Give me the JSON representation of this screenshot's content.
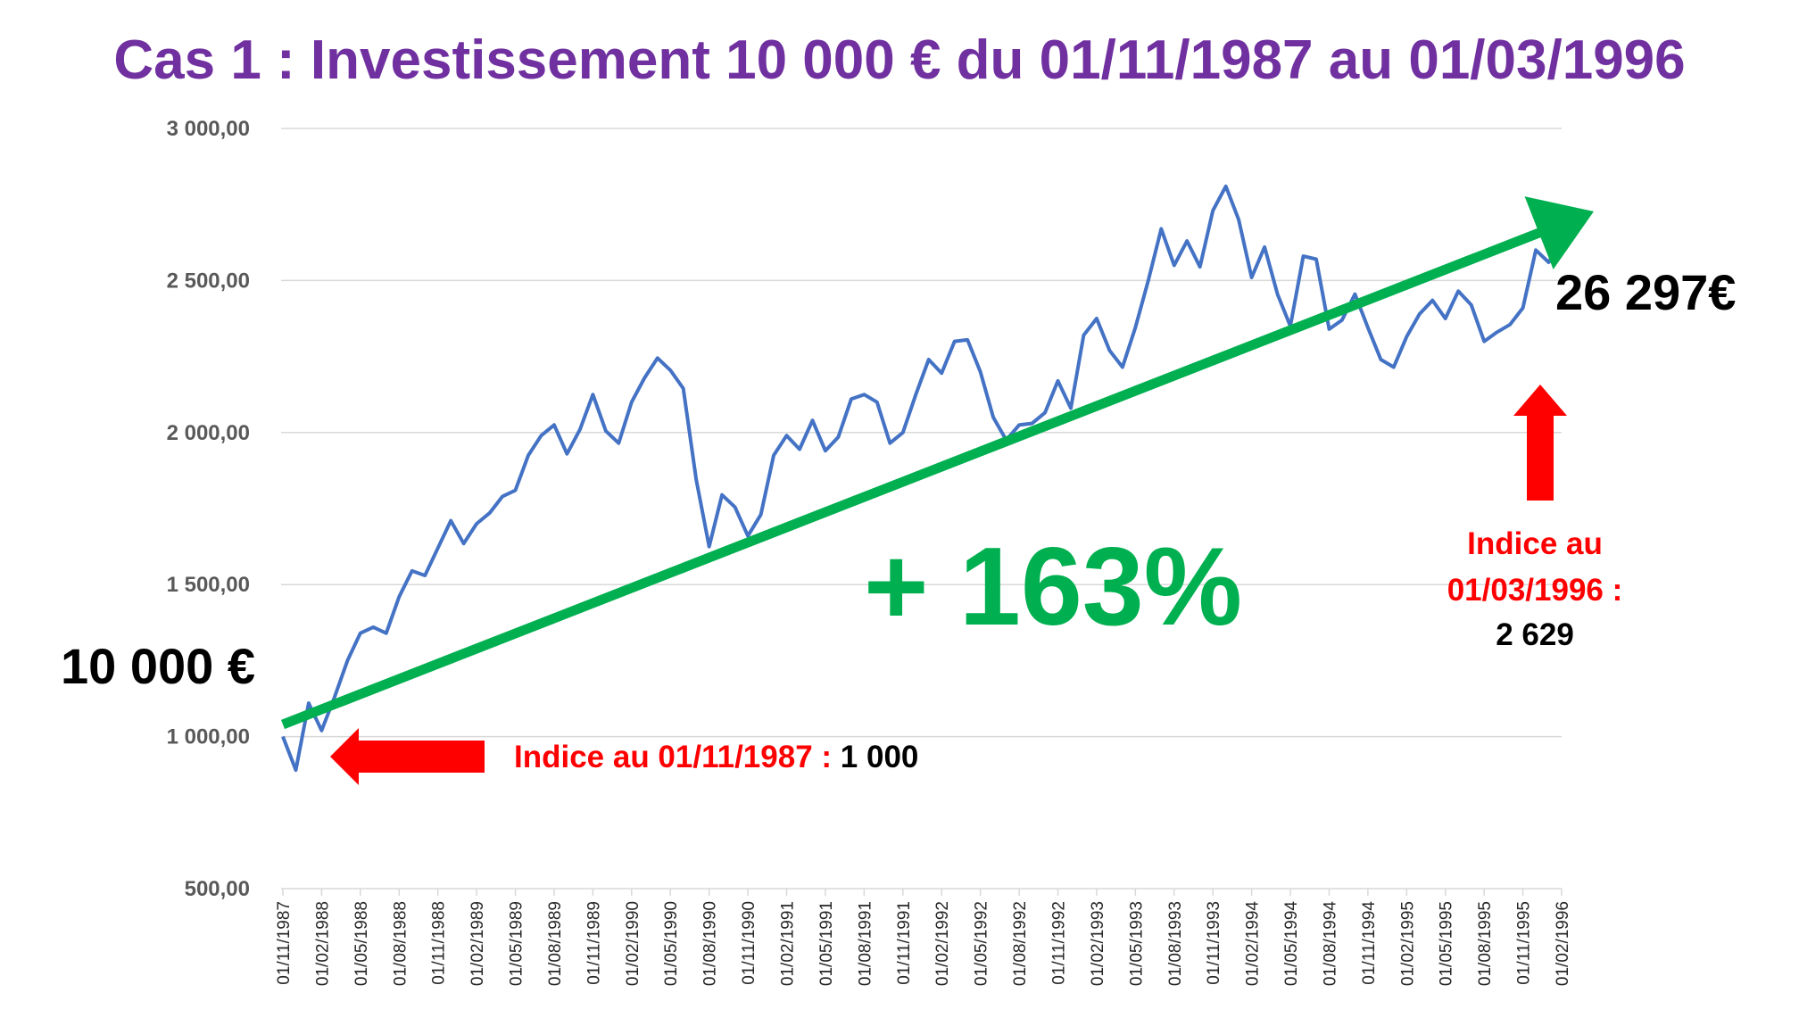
{
  "chart_data": {
    "type": "line",
    "title": "Cas 1 : Investissement 10 000 € du 01/11/1987 au 01/03/1996",
    "xlabel": "",
    "ylabel": "",
    "ylim": [
      500,
      3000
    ],
    "yticks": [
      "3 000,00",
      "2 500,00",
      "2 000,00",
      "1 500,00",
      "1 000,00",
      "500,00"
    ],
    "ytick_values": [
      3000,
      2500,
      2000,
      1500,
      1000,
      500
    ],
    "x_ticks": [
      "01/11/1987",
      "01/02/1988",
      "01/05/1988",
      "01/08/1988",
      "01/11/1988",
      "01/02/1989",
      "01/05/1989",
      "01/08/1989",
      "01/11/1989",
      "01/02/1990",
      "01/05/1990",
      "01/08/1990",
      "01/11/1990",
      "01/02/1991",
      "01/05/1991",
      "01/08/1991",
      "01/11/1991",
      "01/02/1992",
      "01/05/1992",
      "01/08/1992",
      "01/11/1992",
      "01/02/1993",
      "01/05/1993",
      "01/08/1993",
      "01/11/1993",
      "01/02/1994",
      "01/05/1994",
      "01/08/1994",
      "01/11/1994",
      "01/02/1995",
      "01/05/1995",
      "01/08/1995",
      "01/11/1995",
      "01/02/1996"
    ],
    "grid": true,
    "legend": "none",
    "series": [
      {
        "color": "#4472C4",
        "x_start": "01/11/1987",
        "x_step": "1 month",
        "values": [
          1000,
          890,
          1110,
          1020,
          1130,
          1250,
          1340,
          1360,
          1340,
          1460,
          1545,
          1530,
          1620,
          1710,
          1635,
          1700,
          1735,
          1790,
          1810,
          1925,
          1990,
          2025,
          1930,
          2010,
          2125,
          2005,
          1965,
          2100,
          2180,
          2245,
          2205,
          2145,
          1845,
          1625,
          1795,
          1755,
          1660,
          1730,
          1925,
          1990,
          1945,
          2040,
          1940,
          1985,
          2110,
          2125,
          2100,
          1965,
          2000,
          2125,
          2240,
          2195,
          2300,
          2305,
          2200,
          2050,
          1975,
          2025,
          2030,
          2065,
          2170,
          2080,
          2320,
          2375,
          2270,
          2215,
          2345,
          2500,
          2670,
          2550,
          2630,
          2545,
          2730,
          2810,
          2700,
          2510,
          2610,
          2455,
          2350,
          2580,
          2570,
          2340,
          2370,
          2455,
          2345,
          2240,
          2215,
          2315,
          2390,
          2435,
          2375,
          2465,
          2420,
          2300,
          2330,
          2355,
          2410,
          2600,
          2560,
          2629
        ]
      }
    ],
    "trend": {
      "color": "#00B050",
      "from": {
        "x": "01/11/1987",
        "y": 1040
      },
      "to": {
        "x": "01/03/1996",
        "y": 2680
      }
    },
    "annotations": {
      "start_amount": "10 000 €",
      "end_amount": "26 297€",
      "pct": "+ 163%",
      "start_label_red": "Indice au 01/11/1987 :",
      "start_label_value": " 1 000",
      "end_label_red_1": "Indice au",
      "end_label_red_2": "01/03/1996 :",
      "end_label_value": "2 629"
    },
    "arrow_color": "#FF0000"
  }
}
